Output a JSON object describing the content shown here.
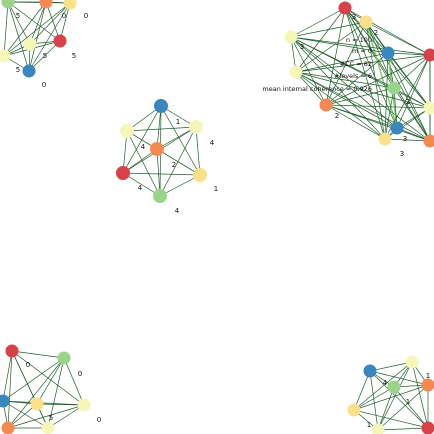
{
  "diagram": {
    "edge_color": "#1f5e2a",
    "highlight_edge_color": "#7ccf6a",
    "node_colors": {
      "blue": "#3a86c0",
      "orange": "#f48a52",
      "red": "#d8414a",
      "green": "#9ad48a",
      "yellow": "#fbe08a",
      "pale": "#f5f7b8"
    },
    "stats": {
      "n": "n = 100",
      "m": "m = 0",
      "ncc": "#CC = 82",
      "levels": "#levels = 6",
      "coherence": "mean internal coherence = 0.926"
    },
    "clusters": [
      {
        "id": "top-left",
        "nodes": [
          {
            "color": "green",
            "label": "5"
          },
          {
            "color": "orange",
            "label": "0"
          },
          {
            "color": "yellow",
            "label": "0"
          },
          {
            "color": "red",
            "label": "5"
          },
          {
            "color": "pale",
            "label": "5"
          },
          {
            "color": "pale",
            "label": "5"
          },
          {
            "color": "blue",
            "label": "0"
          }
        ]
      },
      {
        "id": "center",
        "nodes": [
          {
            "color": "blue",
            "label": "1"
          },
          {
            "color": "pale",
            "label": "4"
          },
          {
            "color": "pale",
            "label": "4"
          },
          {
            "color": "orange",
            "label": "2"
          },
          {
            "color": "red",
            "label": "4"
          },
          {
            "color": "yellow",
            "label": "1"
          },
          {
            "color": "green",
            "label": "4"
          }
        ]
      },
      {
        "id": "top-right",
        "nodes": [
          {
            "color": "red",
            "label": "3"
          },
          {
            "color": "yellow",
            "label": "2"
          },
          {
            "color": "pale",
            "label": "3"
          },
          {
            "color": "blue",
            "label": ""
          },
          {
            "color": "pale",
            "label": ""
          },
          {
            "color": "green",
            "label": "2"
          },
          {
            "color": "orange",
            "label": "2"
          },
          {
            "color": "yellow",
            "label": "3"
          },
          {
            "color": "blue",
            "label": "3"
          },
          {
            "color": "red",
            "label": ""
          },
          {
            "color": "pale",
            "label": ""
          },
          {
            "color": "orange",
            "label": ""
          }
        ]
      },
      {
        "id": "bottom-left",
        "nodes": [
          {
            "color": "red",
            "label": "0"
          },
          {
            "color": "green",
            "label": "0"
          },
          {
            "color": "blue",
            "label": ""
          },
          {
            "color": "yellow",
            "label": "5"
          },
          {
            "color": "pale",
            "label": "0"
          },
          {
            "color": "orange",
            "label": ""
          },
          {
            "color": "pale",
            "label": ""
          }
        ]
      },
      {
        "id": "bottom-right",
        "nodes": [
          {
            "color": "blue",
            "label": "4"
          },
          {
            "color": "pale",
            "label": "1"
          },
          {
            "color": "green",
            "label": "1"
          },
          {
            "color": "orange",
            "label": ""
          },
          {
            "color": "yellow",
            "label": "1"
          },
          {
            "color": "red",
            "label": ""
          },
          {
            "color": "pale",
            "label": ""
          }
        ]
      }
    ]
  }
}
